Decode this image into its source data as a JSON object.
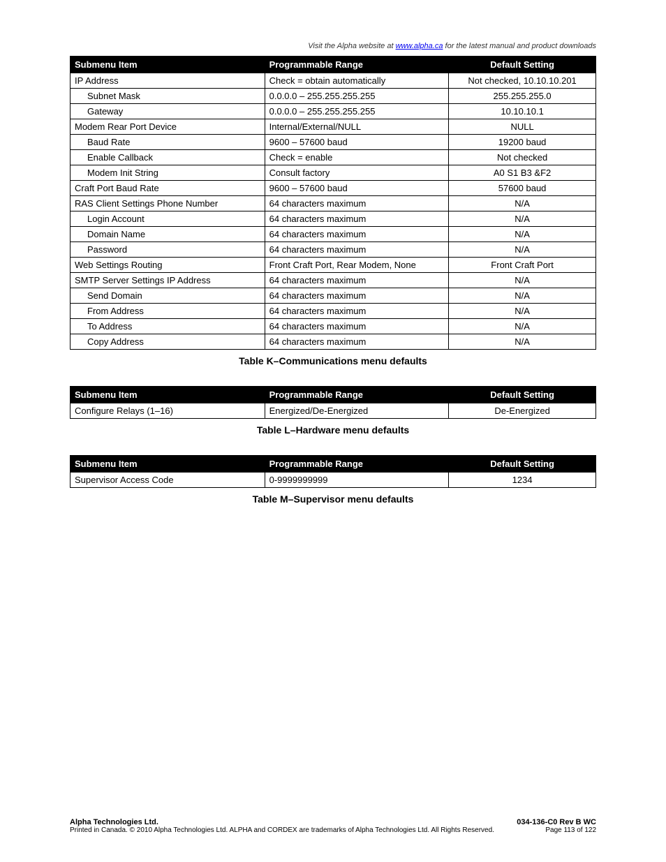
{
  "header": {
    "prefix": "Visit the Alpha website at ",
    "link_text": "www.alpha.ca",
    "suffix": " for the latest manual and product downloads"
  },
  "tableK": {
    "columns": [
      "Submenu Item",
      "Programmable Range",
      "Default Setting"
    ],
    "rows": [
      {
        "item": "IP Address",
        "indent": 0,
        "range": "Check = obtain automatically",
        "default": "Not checked, 10.10.10.201"
      },
      {
        "item": "Subnet Mask",
        "indent": 1,
        "range": "0.0.0.0 – 255.255.255.255",
        "default": "255.255.255.0"
      },
      {
        "item": "Gateway",
        "indent": 1,
        "range": "0.0.0.0 – 255.255.255.255",
        "default": "10.10.10.1"
      },
      {
        "item": "Modem Rear Port Device",
        "indent": 0,
        "range": "Internal/External/NULL",
        "default": "NULL"
      },
      {
        "item": "Baud Rate",
        "indent": 1,
        "range": "9600 – 57600 baud",
        "default": "19200 baud"
      },
      {
        "item": "Enable Callback",
        "indent": 1,
        "range": "Check = enable",
        "default": "Not checked"
      },
      {
        "item": "Modem Init String",
        "indent": 1,
        "range": "Consult factory",
        "default": "A0 S1 B3 &F2"
      },
      {
        "item": "Craft Port Baud Rate",
        "indent": 0,
        "range": "9600 – 57600 baud",
        "default": "57600 baud"
      },
      {
        "item": "RAS Client Settings Phone Number",
        "indent": 0,
        "range": "64 characters maximum",
        "default": "N/A"
      },
      {
        "item": "Login Account",
        "indent": 1,
        "range": "64 characters maximum",
        "default": "N/A"
      },
      {
        "item": "Domain Name",
        "indent": 1,
        "range": "64 characters maximum",
        "default": "N/A"
      },
      {
        "item": "Password",
        "indent": 1,
        "range": "64 characters maximum",
        "default": "N/A"
      },
      {
        "item": "Web Settings Routing",
        "indent": 0,
        "range": "Front Craft Port, Rear Modem, None",
        "default": "Front Craft Port"
      },
      {
        "item": "SMTP Server Settings IP Address",
        "indent": 0,
        "range": "64 characters maximum",
        "default": "N/A"
      },
      {
        "item": "Send Domain",
        "indent": 1,
        "range": "64 characters maximum",
        "default": "N/A"
      },
      {
        "item": "From Address",
        "indent": 1,
        "range": "64 characters maximum",
        "default": "N/A"
      },
      {
        "item": "To Address",
        "indent": 1,
        "range": "64 characters maximum",
        "default": "N/A"
      },
      {
        "item": "Copy Address",
        "indent": 1,
        "range": "64 characters maximum",
        "default": "N/A"
      }
    ],
    "caption": "Table K–Communications menu defaults"
  },
  "tableL": {
    "columns": [
      "Submenu Item",
      "Programmable Range",
      "Default Setting"
    ],
    "rows": [
      {
        "item": "Configure Relays (1–16)",
        "indent": 0,
        "range": "Energized/De-Energized",
        "default": "De-Energized"
      }
    ],
    "caption": "Table L–Hardware menu defaults"
  },
  "tableM": {
    "columns": [
      "Submenu Item",
      "Programmable Range",
      "Default Setting"
    ],
    "rows": [
      {
        "item": "Supervisor Access Code",
        "indent": 0,
        "range": "0-9999999999",
        "default": "1234"
      }
    ],
    "caption": "Table M–Supervisor menu defaults"
  },
  "footer": {
    "company": "Alpha Technologies Ltd.",
    "copyright": "Printed in Canada.  © 2010 Alpha Technologies Ltd.  ALPHA and CORDEX are trademarks of Alpha Technologies Ltd.  All Rights Reserved.",
    "doc": "034-136-C0  Rev B  WC",
    "page": "Page 113 of 122"
  }
}
